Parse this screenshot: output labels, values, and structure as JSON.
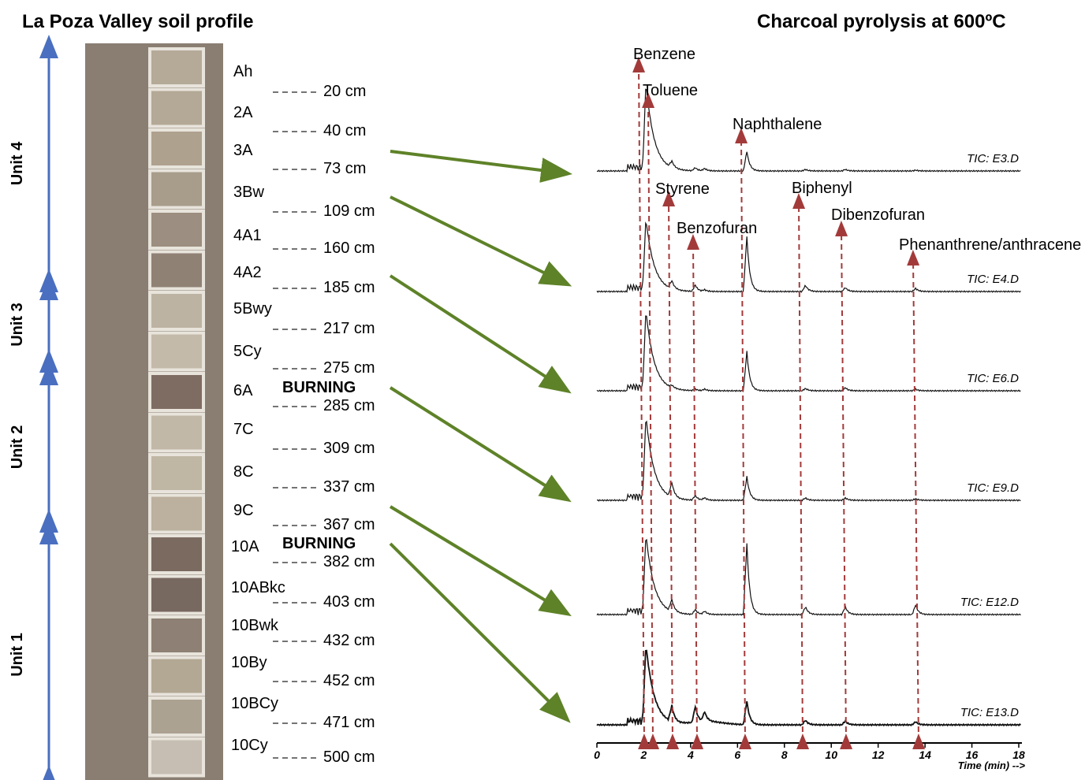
{
  "left_title": "La Poza Valley soil profile",
  "right_title": "Charcoal pyrolysis at 600ºC",
  "units": [
    "Unit 4",
    "Unit 3",
    "Unit 2",
    "Unit 1"
  ],
  "horizons": [
    {
      "name": "Ah",
      "depth": "20 cm"
    },
    {
      "name": "2A",
      "depth": "40 cm"
    },
    {
      "name": "3A",
      "depth": "73 cm"
    },
    {
      "name": "3Bw",
      "depth": "109 cm"
    },
    {
      "name": "4A1",
      "depth": "160 cm"
    },
    {
      "name": "4A2",
      "depth": "185 cm"
    },
    {
      "name": "5Bwy",
      "depth": "217 cm"
    },
    {
      "name": "5Cy",
      "depth": "275 cm"
    },
    {
      "name": "6A",
      "depth": "285 cm",
      "note": "BURNING"
    },
    {
      "name": "7C",
      "depth": "309 cm"
    },
    {
      "name": "8C",
      "depth": "337 cm"
    },
    {
      "name": "9C",
      "depth": "367 cm"
    },
    {
      "name": "10A",
      "depth": "382 cm",
      "note": "BURNING"
    },
    {
      "name": "10ABkc",
      "depth": "403 cm"
    },
    {
      "name": "10Bwk",
      "depth": "432 cm"
    },
    {
      "name": "10By",
      "depth": "452 cm"
    },
    {
      "name": "10BCy",
      "depth": "471 cm"
    },
    {
      "name": "10Cy",
      "depth": "500 cm"
    }
  ],
  "compounds": [
    "Benzene",
    "Toluene",
    "Naphthalene",
    "Styrene",
    "Benzofuran",
    "Biphenyl",
    "Dibenzofuran",
    "Phenanthrene/anthracene"
  ],
  "traces": [
    "TIC: E3.D",
    "TIC: E4.D",
    "TIC: E6.D",
    "TIC: E9.D",
    "TIC: E12.D",
    "TIC: E13.D"
  ],
  "axis": {
    "ticks": [
      0,
      2,
      4,
      6,
      8,
      10,
      12,
      14,
      16,
      18
    ],
    "label": "Time (min) -->"
  }
}
